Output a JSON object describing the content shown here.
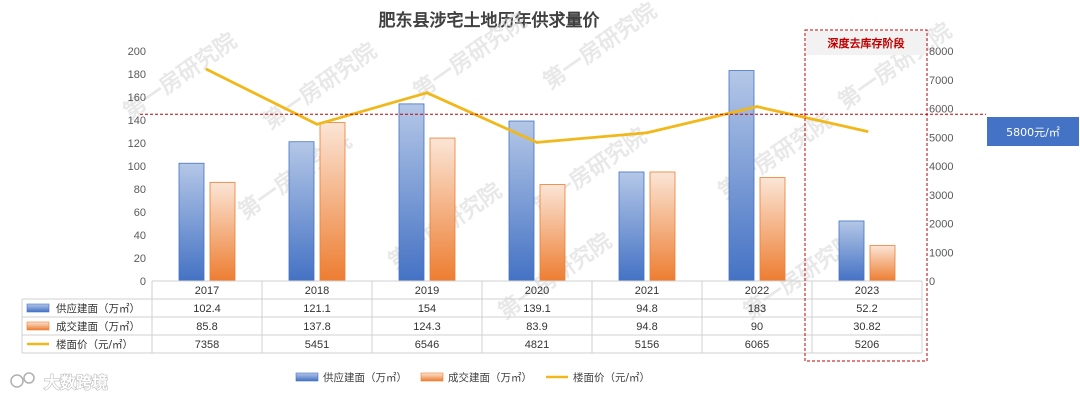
{
  "chart_data": {
    "type": "bar",
    "title": "肥东县涉宅土地历年供求量价",
    "categories": [
      "2017",
      "2018",
      "2019",
      "2020",
      "2021",
      "2022",
      "2023"
    ],
    "series": [
      {
        "name": "供应建面（万㎡）",
        "kind": "bar",
        "axis": "left",
        "color": "#4472c4",
        "values": [
          102.4,
          121.1,
          154,
          139.1,
          94.8,
          183,
          52.2
        ],
        "labels": [
          "102.4",
          "121.1",
          "154",
          "139.1",
          "94.8",
          "183",
          "52.2"
        ]
      },
      {
        "name": "成交建面（万㎡）",
        "kind": "bar",
        "axis": "left",
        "color": "#ed7d31",
        "values": [
          85.8,
          137.8,
          124.3,
          83.9,
          94.8,
          90,
          30.82
        ],
        "labels": [
          "85.8",
          "137.8",
          "124.3",
          "83.9",
          "94.8",
          "90",
          "30.82"
        ]
      },
      {
        "name": "楼面价（元/㎡）",
        "kind": "line",
        "axis": "right",
        "color": "#f0b81a",
        "values": [
          7358,
          5451,
          6546,
          4821,
          5156,
          6065,
          5206
        ],
        "labels": [
          "7358",
          "5451",
          "6546",
          "4821",
          "5156",
          "6065",
          "5206"
        ]
      }
    ],
    "y_left": {
      "min": 0,
      "max": 200,
      "step": 20,
      "ticks": [
        "0",
        "20",
        "40",
        "60",
        "80",
        "100",
        "120",
        "140",
        "160",
        "180",
        "200"
      ]
    },
    "y_right": {
      "min": 0,
      "max": 8000,
      "step": 1000,
      "ticks": [
        "0",
        "1000",
        "2000",
        "3000",
        "4000",
        "5000",
        "6000",
        "7000",
        "8000"
      ]
    },
    "reference_line": {
      "value": 5800,
      "axis": "right",
      "label": "5800元/㎡"
    },
    "highlight": {
      "category": "2023",
      "label": "深度去库存阶段"
    },
    "legend_position": "bottom",
    "grid": false,
    "data_table": true
  },
  "watermark": "第一房研究院",
  "brand": "大数跨境",
  "colors": {
    "bar1_top": "#b4c7e7",
    "bar1_bottom": "#4472c4",
    "bar2_top": "#fbe5d6",
    "bar2_bottom": "#ed7d31",
    "line": "#f0b81a",
    "dashed": "#c00000",
    "callout": "#4472c4"
  }
}
